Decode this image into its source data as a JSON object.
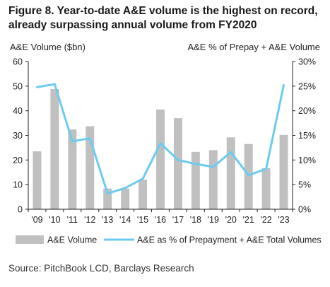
{
  "figure_title": "Figure 8. Year-to-date A&E volume is the highest on record, already surpassing annual volume from FY2020",
  "source": "Source: PitchBook LCD, Barclays Research",
  "colors": {
    "bar": "#c0c0c0",
    "line": "#6ccbf0",
    "axis": "#222222"
  },
  "chart_data": {
    "type": "bar",
    "categories": [
      "'09",
      "'10",
      "'11",
      "'12",
      "'13",
      "'14",
      "'15",
      "'16",
      "'17",
      "'18",
      "'19",
      "'20",
      "'21",
      "'22",
      "'23"
    ],
    "series": [
      {
        "name": "A&E Volume",
        "type": "bar",
        "axis": "left",
        "values": [
          23.5,
          48.8,
          32.4,
          33.7,
          8.4,
          8.4,
          12.0,
          40.5,
          37.0,
          23.3,
          24.0,
          29.2,
          26.5,
          16.7,
          30.2
        ]
      },
      {
        "name": "A&E as % of Prepayment + A&E Total Volumes",
        "type": "line",
        "axis": "right",
        "values": [
          24.8,
          25.4,
          13.8,
          14.4,
          3.2,
          4.3,
          6.2,
          13.4,
          10.0,
          9.2,
          8.6,
          11.6,
          6.9,
          8.2,
          25.2
        ]
      }
    ],
    "ylabel": "A&E Volume ($bn)",
    "y2label": "A&E % of Prepay + A&E Volume",
    "ylim": [
      0,
      60
    ],
    "y2lim": [
      0,
      30
    ],
    "yticks": [
      "0",
      "10",
      "20",
      "30",
      "40",
      "50",
      "60"
    ],
    "y2ticks": [
      "0%",
      "5%",
      "10%",
      "15%",
      "20%",
      "25%",
      "30%"
    ],
    "grid": false,
    "legend": "bottom"
  }
}
